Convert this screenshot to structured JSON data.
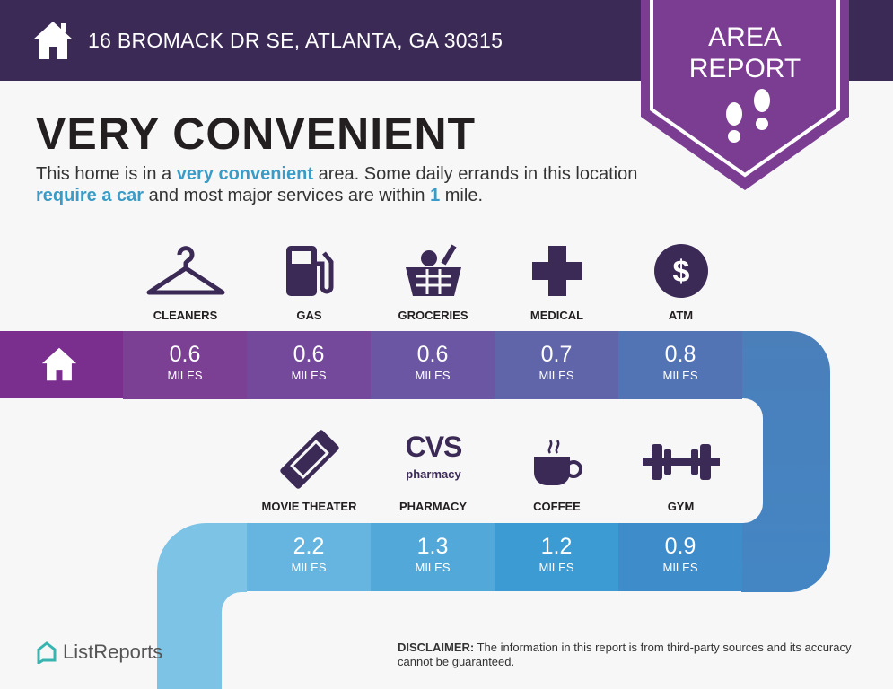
{
  "header": {
    "address": "16 BROMACK DR SE, ATLANTA, GA 30315",
    "icon": "home-icon"
  },
  "badge": {
    "line1": "AREA",
    "line2": "REPORT",
    "icon": "footprints-icon"
  },
  "title": "VERY CONVENIENT",
  "description": {
    "p1": "This home is in a ",
    "h1": "very convenient",
    "p2": " area. Some daily errands in this location ",
    "h2": "require a car",
    "p3": " and most major services are within ",
    "h3": "1",
    "p4": " mile."
  },
  "colors": {
    "header": "#3b2a56",
    "badge": "#7b3d92",
    "highlight": "#3a9cc6",
    "icon": "#3b2a56"
  },
  "row1": [
    {
      "label": "CLEANERS",
      "value": "0.6",
      "unit": "MILES",
      "icon": "hanger-icon"
    },
    {
      "label": "GAS",
      "value": "0.6",
      "unit": "MILES",
      "icon": "gas-pump-icon"
    },
    {
      "label": "GROCERIES",
      "value": "0.6",
      "unit": "MILES",
      "icon": "grocery-basket-icon"
    },
    {
      "label": "MEDICAL",
      "value": "0.7",
      "unit": "MILES",
      "icon": "medical-cross-icon"
    },
    {
      "label": "ATM",
      "value": "0.8",
      "unit": "MILES",
      "icon": "dollar-icon"
    }
  ],
  "row2": [
    {
      "label": "MOVIE THEATER",
      "value": "2.2",
      "unit": "MILES",
      "icon": "ticket-icon"
    },
    {
      "label": "PHARMACY",
      "value": "1.3",
      "unit": "MILES",
      "icon": "cvs-pharmacy-logo",
      "logo_text": "CVS pharmacy"
    },
    {
      "label": "COFFEE",
      "value": "1.2",
      "unit": "MILES",
      "icon": "coffee-cup-icon"
    },
    {
      "label": "GYM",
      "value": "0.9",
      "unit": "MILES",
      "icon": "dumbbell-icon"
    }
  ],
  "footer": {
    "brand": "ListReports",
    "disclaimer_label": "DISCLAIMER:",
    "disclaimer": " The information in this report is from third-party sources and its accuracy cannot be guaranteed."
  }
}
